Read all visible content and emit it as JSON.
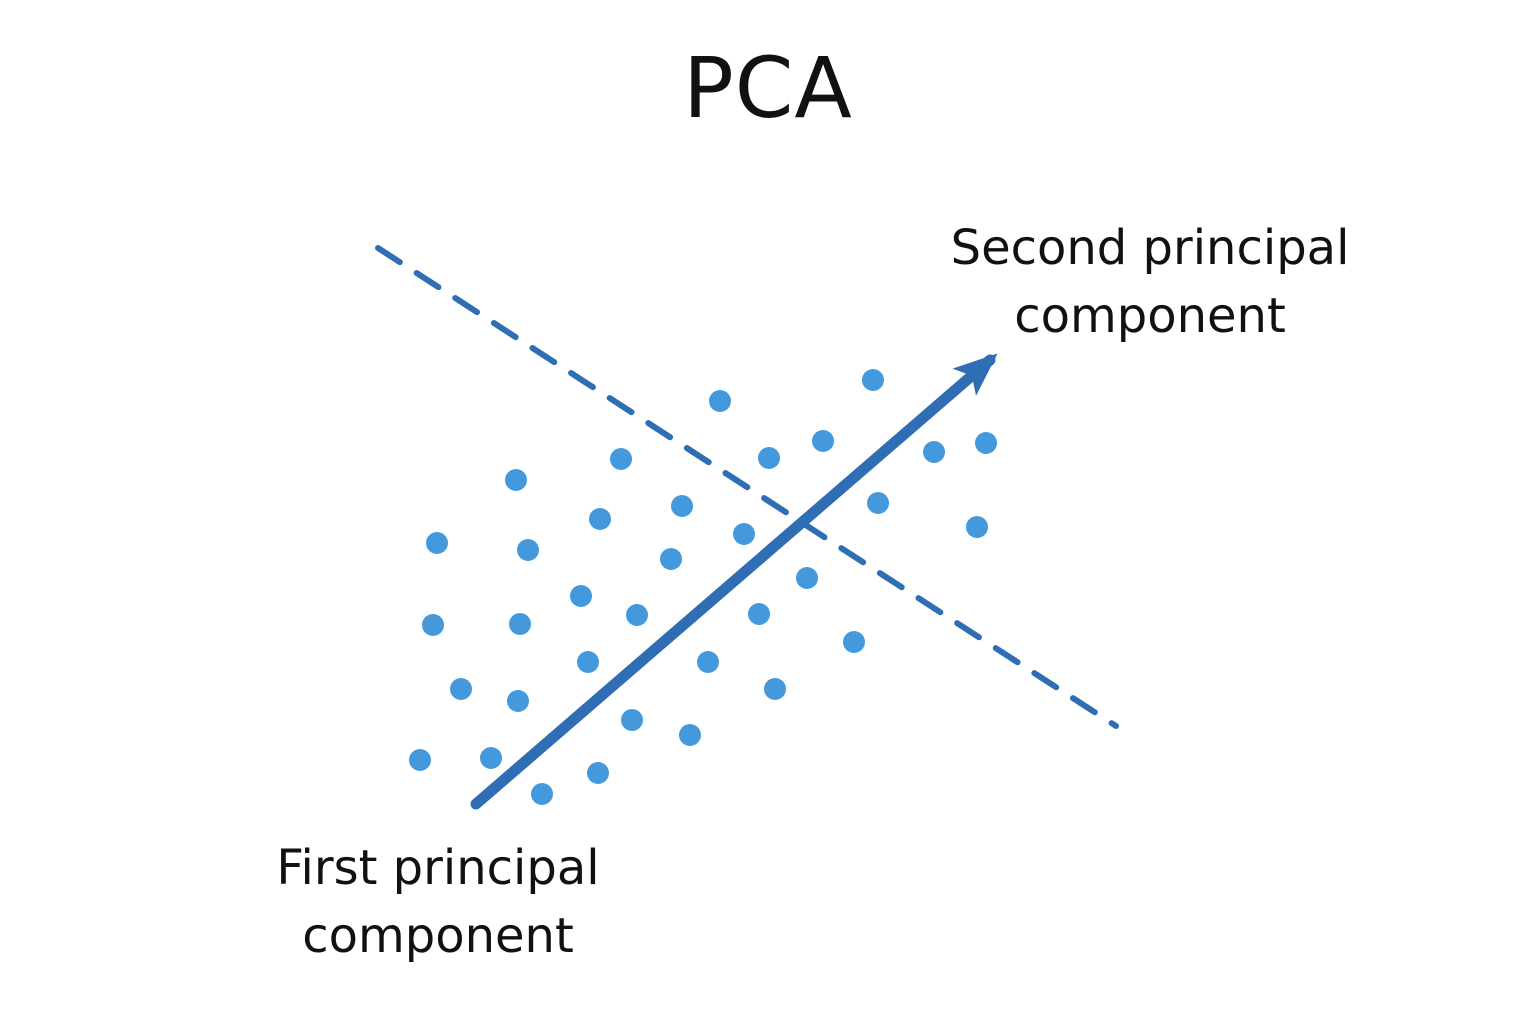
{
  "title": "PCA",
  "labels": {
    "second_component": [
      "Second principal",
      "component"
    ],
    "first_component": [
      "First principal",
      "component"
    ]
  },
  "colors": {
    "points": "#4499dd",
    "axis": "#2f6db5",
    "text": "#111111",
    "background": "#ffffff"
  }
}
